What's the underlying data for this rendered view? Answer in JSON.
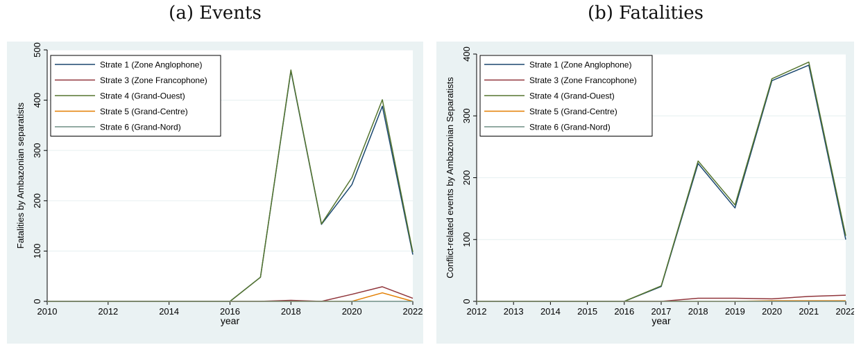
{
  "captions": {
    "a": "(a) Events",
    "b": "(b) Fatalities"
  },
  "colors": {
    "outer_bg": "#EAF2F3",
    "plot_bg": "#FFFFFF",
    "grid": "#EAF2F3",
    "strate1": "#1A476F",
    "strate3": "#90353B",
    "strate4": "#55752F",
    "strate5": "#E37E00",
    "strate6": "#6E8E84"
  },
  "chart_data": [
    {
      "type": "line",
      "title": "(a) Events",
      "xlabel": "year",
      "ylabel": "Fatalities by Ambazonian separatists",
      "xlim": [
        2010,
        2022
      ],
      "ylim": [
        0,
        500
      ],
      "xticks": [
        2010,
        2012,
        2014,
        2016,
        2018,
        2020,
        2022
      ],
      "yticks": [
        0,
        100,
        200,
        300,
        400,
        500
      ],
      "grid": true,
      "legend_position": "top-left",
      "x": [
        2010,
        2011,
        2012,
        2013,
        2014,
        2015,
        2016,
        2017,
        2018,
        2019,
        2020,
        2021,
        2022
      ],
      "series": [
        {
          "name": "Strate 1 (Zone Anglophone)",
          "color": "strate1",
          "values": [
            0,
            0,
            0,
            0,
            0,
            0,
            0,
            48,
            458,
            153,
            232,
            388,
            93
          ]
        },
        {
          "name": "Strate 3 (Zone Francophone)",
          "color": "strate3",
          "values": [
            0,
            0,
            0,
            0,
            0,
            0,
            0,
            0,
            2,
            0,
            14,
            29,
            6
          ]
        },
        {
          "name": "Strate 4 (Grand-Ouest)",
          "color": "strate4",
          "values": [
            0,
            0,
            0,
            0,
            0,
            0,
            0,
            48,
            460,
            154,
            246,
            401,
            98
          ]
        },
        {
          "name": "Strate 5 (Grand-Centre)",
          "color": "strate5",
          "values": [
            0,
            0,
            0,
            0,
            0,
            0,
            0,
            0,
            0,
            0,
            0,
            17,
            0
          ]
        },
        {
          "name": "Strate 6 (Grand-Nord)",
          "color": "strate6",
          "values": [
            0,
            0,
            0,
            0,
            0,
            0,
            0,
            0,
            0,
            0,
            0,
            0,
            0
          ]
        }
      ]
    },
    {
      "type": "line",
      "title": "(b) Fatalities",
      "xlabel": "year",
      "ylabel": "Conflict-related events by Ambazonian Separatists",
      "xlim": [
        2012,
        2022
      ],
      "ylim": [
        0,
        400
      ],
      "xticks": [
        2012,
        2013,
        2014,
        2015,
        2016,
        2017,
        2018,
        2019,
        2020,
        2021,
        2022
      ],
      "yticks": [
        0,
        100,
        200,
        300,
        400
      ],
      "grid": true,
      "legend_position": "top-left",
      "x": [
        2012,
        2013,
        2014,
        2015,
        2016,
        2017,
        2018,
        2019,
        2020,
        2021,
        2022
      ],
      "series": [
        {
          "name": "Strate 1 (Zone Anglophone)",
          "color": "strate1",
          "values": [
            0,
            0,
            0,
            0,
            0,
            24,
            223,
            151,
            357,
            382,
            100
          ]
        },
        {
          "name": "Strate 3 (Zone Francophone)",
          "color": "strate3",
          "values": [
            0,
            0,
            0,
            0,
            0,
            0,
            5,
            5,
            4,
            8,
            10
          ]
        },
        {
          "name": "Strate 4 (Grand-Ouest)",
          "color": "strate4",
          "values": [
            0,
            0,
            0,
            0,
            0,
            25,
            227,
            156,
            360,
            387,
            106
          ]
        },
        {
          "name": "Strate 5 (Grand-Centre)",
          "color": "strate5",
          "values": [
            0,
            0,
            0,
            0,
            0,
            0,
            0,
            0,
            1,
            1,
            1
          ]
        },
        {
          "name": "Strate 6 (Grand-Nord)",
          "color": "strate6",
          "values": [
            0,
            0,
            0,
            0,
            0,
            0,
            0,
            0,
            0,
            0,
            0
          ]
        }
      ]
    }
  ]
}
